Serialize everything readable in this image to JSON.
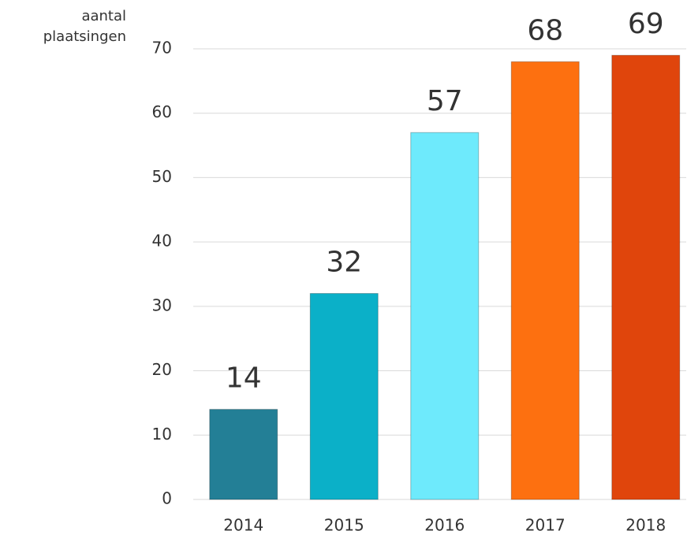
{
  "chart_data": {
    "type": "bar",
    "y_label": "aantal plaatsingen",
    "categories": [
      "2014",
      "2015",
      "2016",
      "2017",
      "2018"
    ],
    "values": [
      14,
      32,
      57,
      68,
      69
    ],
    "colors": [
      "#237f96",
      "#0bb0c8",
      "#6eeafc",
      "#fd7010",
      "#e0450c"
    ],
    "ylim": [
      0,
      70
    ],
    "yticks": [
      0,
      10,
      20,
      30,
      40,
      50,
      60,
      70
    ],
    "grid": true
  }
}
